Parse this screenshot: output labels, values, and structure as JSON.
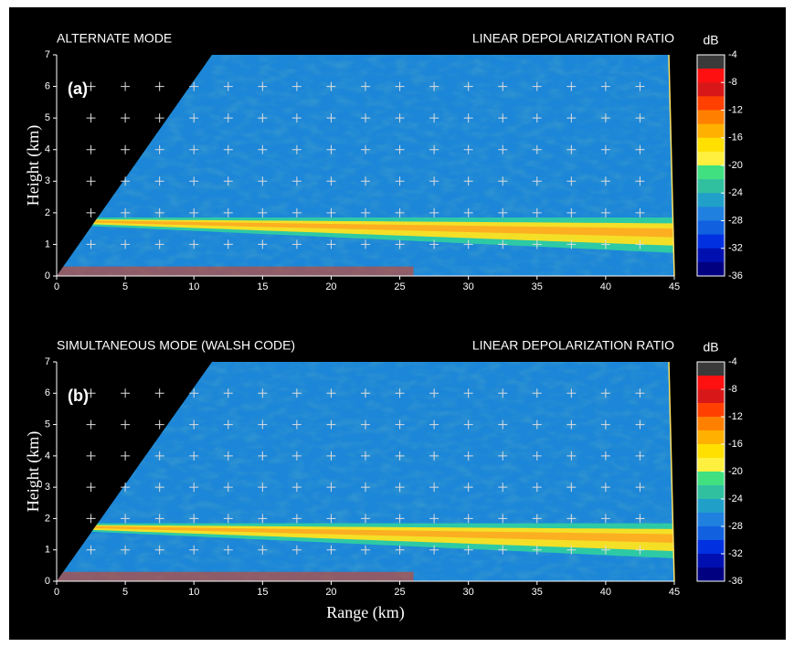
{
  "chart_data": [
    {
      "type": "heatmap",
      "title": "ALTERNATE MODE",
      "subtitle": "LINEAR DEPOLARIZATION RATIO",
      "panel_label": "(a)",
      "ylabel": "Height (km)",
      "xlim": [
        0,
        45
      ],
      "xticks": [
        0,
        5,
        10,
        15,
        20,
        25,
        30,
        35,
        40,
        45
      ],
      "ylim": [
        0,
        7
      ],
      "yticks": [
        0,
        1,
        2,
        3,
        4,
        5,
        6,
        7
      ],
      "grid": true,
      "colorbar": {
        "label": "dB",
        "lim": [
          -36,
          -4
        ],
        "ticks": [
          -4,
          -8,
          -12,
          -16,
          -20,
          -24,
          -28,
          -32,
          -36
        ],
        "colors": [
          "#3a3a3a",
          "#ff1010",
          "#d81818",
          "#ff4000",
          "#ff8000",
          "#ffb000",
          "#ffe000",
          "#fff040",
          "#40e080",
          "#30c0a0",
          "#20a0c8",
          "#2080e0",
          "#1060e0",
          "#0030e0",
          "#0010b0",
          "#000080"
        ]
      }
    },
    {
      "type": "heatmap",
      "title": "SIMULTANEOUS MODE (WALSH CODE)",
      "subtitle": "LINEAR DEPOLARIZATION RATIO",
      "panel_label": "(b)",
      "xlabel": "Range (km)",
      "ylabel": "Height (km)",
      "xlim": [
        0,
        45
      ],
      "xticks": [
        0,
        5,
        10,
        15,
        20,
        25,
        30,
        35,
        40,
        45
      ],
      "ylim": [
        0,
        7
      ],
      "yticks": [
        0,
        1,
        2,
        3,
        4,
        5,
        6,
        7
      ],
      "grid": true,
      "colorbar": {
        "label": "dB",
        "lim": [
          -36,
          -4
        ],
        "ticks": [
          -4,
          -8,
          -12,
          -16,
          -20,
          -24,
          -28,
          -32,
          -36
        ],
        "colors": [
          "#3a3a3a",
          "#ff1010",
          "#d81818",
          "#ff4000",
          "#ff8000",
          "#ffb000",
          "#ffe000",
          "#fff040",
          "#40e080",
          "#30c0a0",
          "#20a0c8",
          "#2080e0",
          "#1060e0",
          "#0030e0",
          "#0010b0",
          "#000080"
        ]
      }
    }
  ]
}
